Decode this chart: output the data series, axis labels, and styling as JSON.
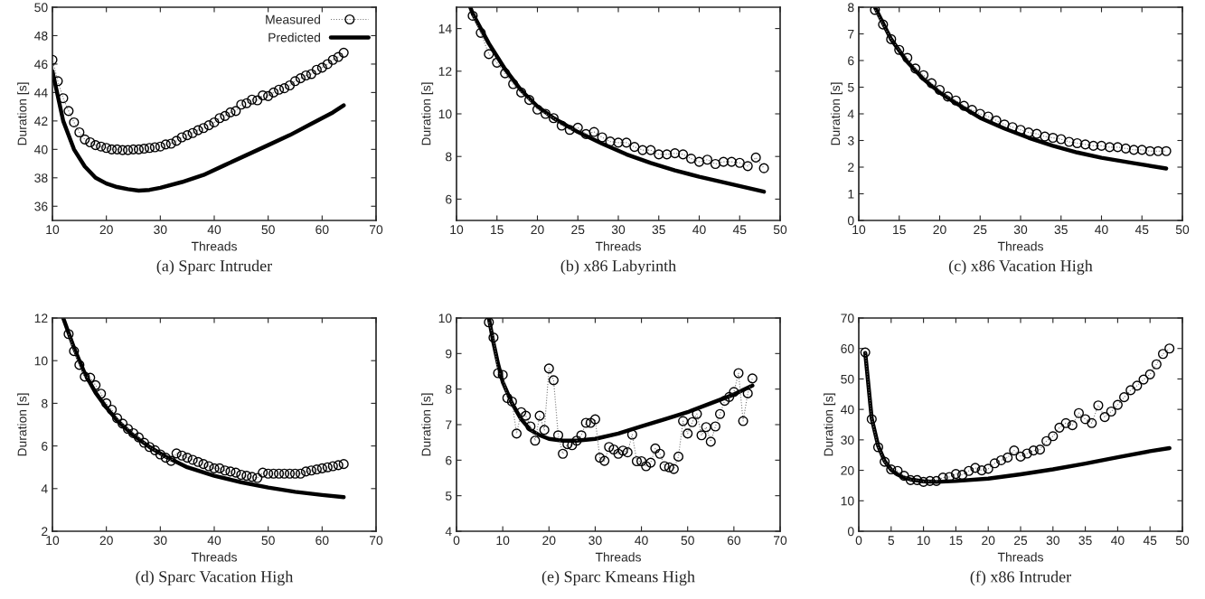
{
  "chart_data": [
    {
      "type": "line",
      "title": "(a) Sparc Intruder",
      "xlabel": "Threads",
      "ylabel": "Duration [s]",
      "xlim": [
        10,
        70
      ],
      "xticks": [
        10,
        20,
        30,
        40,
        50,
        60,
        70
      ],
      "ylim": [
        35,
        50
      ],
      "yticks": [
        36,
        38,
        40,
        42,
        44,
        46,
        48,
        50
      ],
      "grid": false,
      "legend": "top right",
      "series": [
        {
          "name": "Measured",
          "color": "#000000",
          "marker": "circle",
          "line_style": "dotted",
          "x": [
            10,
            11,
            12,
            13,
            14,
            15,
            16,
            17,
            18,
            19,
            20,
            21,
            22,
            23,
            24,
            25,
            26,
            27,
            28,
            29,
            30,
            31,
            32,
            33,
            34,
            35,
            36,
            37,
            38,
            39,
            40,
            41,
            42,
            43,
            44,
            45,
            46,
            47,
            48,
            49,
            50,
            51,
            52,
            53,
            54,
            55,
            56,
            57,
            58,
            59,
            60,
            61,
            62,
            63,
            64
          ],
          "values": [
            46.3,
            44.8,
            43.6,
            42.7,
            41.9,
            41.2,
            40.7,
            40.5,
            40.3,
            40.2,
            40.1,
            40.0,
            40.0,
            39.95,
            39.95,
            40.0,
            40.0,
            40.05,
            40.1,
            40.15,
            40.2,
            40.35,
            40.4,
            40.6,
            40.85,
            41.0,
            41.15,
            41.35,
            41.5,
            41.7,
            41.9,
            42.2,
            42.35,
            42.6,
            42.7,
            43.15,
            43.25,
            43.5,
            43.45,
            43.8,
            43.75,
            44.0,
            44.2,
            44.3,
            44.5,
            44.8,
            45.0,
            45.2,
            45.3,
            45.6,
            45.75,
            46.0,
            46.3,
            46.5,
            46.8
          ]
        },
        {
          "name": "Predicted",
          "color": "#000000",
          "marker": "none",
          "line_style": "solid",
          "x": [
            10,
            12,
            14,
            16,
            18,
            20,
            22,
            24,
            26,
            28,
            30,
            34,
            38,
            42,
            46,
            50,
            54,
            58,
            62,
            64
          ],
          "values": [
            45.5,
            42.0,
            40.0,
            38.8,
            38.0,
            37.6,
            37.35,
            37.2,
            37.1,
            37.15,
            37.3,
            37.7,
            38.2,
            38.9,
            39.6,
            40.3,
            41.0,
            41.8,
            42.6,
            43.1
          ]
        }
      ]
    },
    {
      "type": "line",
      "title": "(b) x86 Labyrinth",
      "xlabel": "Threads",
      "ylabel": "Duration [s]",
      "xlim": [
        10,
        50
      ],
      "xticks": [
        10,
        15,
        20,
        25,
        30,
        35,
        40,
        45,
        50
      ],
      "ylim": [
        5,
        15
      ],
      "yticks": [
        6,
        8,
        10,
        12,
        14
      ],
      "grid": false,
      "series": [
        {
          "color": "#000000",
          "marker": "circle",
          "line_style": "dotted",
          "x": [
            12,
            13,
            14,
            15,
            16,
            17,
            18,
            19,
            20,
            21,
            22,
            23,
            24,
            25,
            26,
            27,
            28,
            29,
            30,
            31,
            32,
            33,
            34,
            35,
            36,
            37,
            38,
            39,
            40,
            41,
            42,
            43,
            44,
            45,
            46,
            47,
            48
          ],
          "values": [
            14.6,
            13.8,
            12.8,
            12.4,
            11.9,
            11.4,
            11.0,
            10.65,
            10.2,
            10.0,
            9.8,
            9.45,
            9.25,
            9.35,
            9.05,
            9.15,
            8.9,
            8.7,
            8.65,
            8.65,
            8.45,
            8.3,
            8.3,
            8.1,
            8.1,
            8.15,
            8.1,
            7.9,
            7.75,
            7.85,
            7.65,
            7.75,
            7.75,
            7.7,
            7.55,
            7.95,
            7.45
          ]
        },
        {
          "color": "#000000",
          "marker": "none",
          "line_style": "solid",
          "x": [
            11.7,
            12,
            14,
            16,
            18,
            20,
            22,
            25,
            28,
            31,
            34,
            37,
            40,
            44,
            48
          ],
          "values": [
            15.0,
            14.7,
            13.3,
            12.1,
            11.1,
            10.35,
            9.8,
            9.15,
            8.6,
            8.1,
            7.7,
            7.35,
            7.05,
            6.7,
            6.35
          ]
        }
      ]
    },
    {
      "type": "line",
      "title": "(c) x86 Vacation High",
      "xlabel": "Threads",
      "ylabel": "Duration [s]",
      "xlim": [
        10,
        50
      ],
      "xticks": [
        10,
        15,
        20,
        25,
        30,
        35,
        40,
        45,
        50
      ],
      "ylim": [
        0,
        8
      ],
      "yticks": [
        0,
        1,
        2,
        3,
        4,
        5,
        6,
        7,
        8
      ],
      "grid": false,
      "series": [
        {
          "color": "#000000",
          "marker": "circle",
          "line_style": "dotted",
          "x": [
            12,
            13,
            14,
            15,
            16,
            17,
            18,
            19,
            20,
            21,
            22,
            23,
            24,
            25,
            26,
            27,
            28,
            29,
            30,
            31,
            32,
            33,
            34,
            35,
            36,
            37,
            38,
            39,
            40,
            41,
            42,
            43,
            44,
            45,
            46,
            47,
            48
          ],
          "values": [
            7.9,
            7.35,
            6.8,
            6.4,
            6.1,
            5.7,
            5.45,
            5.15,
            4.9,
            4.65,
            4.5,
            4.3,
            4.15,
            4.0,
            3.9,
            3.75,
            3.6,
            3.5,
            3.4,
            3.3,
            3.25,
            3.15,
            3.1,
            3.05,
            2.95,
            2.9,
            2.85,
            2.8,
            2.8,
            2.75,
            2.75,
            2.7,
            2.65,
            2.65,
            2.6,
            2.6,
            2.6
          ]
        },
        {
          "color": "#000000",
          "marker": "none",
          "line_style": "solid",
          "x": [
            12,
            14,
            16,
            18,
            20,
            22,
            25,
            28,
            31,
            34,
            37,
            40,
            44,
            48
          ],
          "values": [
            8.0,
            6.8,
            5.95,
            5.3,
            4.8,
            4.4,
            3.85,
            3.45,
            3.1,
            2.8,
            2.55,
            2.35,
            2.15,
            1.95
          ]
        }
      ]
    },
    {
      "type": "line",
      "title": "(d) Sparc Vacation High",
      "xlabel": "Threads",
      "ylabel": "Duration [s]",
      "xlim": [
        10,
        70
      ],
      "xticks": [
        10,
        20,
        30,
        40,
        50,
        60,
        70
      ],
      "ylim": [
        2,
        12
      ],
      "yticks": [
        2,
        4,
        6,
        8,
        10,
        12
      ],
      "grid": false,
      "series": [
        {
          "color": "#000000",
          "marker": "circle",
          "line_style": "dotted",
          "x": [
            13,
            14,
            15,
            16,
            17,
            18,
            19,
            20,
            21,
            22,
            23,
            24,
            25,
            26,
            27,
            28,
            29,
            30,
            31,
            32,
            33,
            34,
            35,
            36,
            37,
            38,
            39,
            40,
            41,
            42,
            43,
            44,
            45,
            46,
            47,
            48,
            49,
            50,
            51,
            52,
            53,
            54,
            55,
            56,
            57,
            58,
            59,
            60,
            61,
            62,
            63,
            64
          ],
          "values": [
            11.25,
            10.45,
            9.8,
            9.25,
            9.2,
            8.85,
            8.45,
            8.0,
            7.7,
            7.3,
            7.05,
            6.8,
            6.6,
            6.4,
            6.15,
            5.95,
            5.8,
            5.6,
            5.45,
            5.3,
            5.65,
            5.55,
            5.45,
            5.35,
            5.25,
            5.15,
            5.05,
            4.95,
            4.95,
            4.85,
            4.8,
            4.75,
            4.65,
            4.6,
            4.55,
            4.5,
            4.75,
            4.7,
            4.7,
            4.7,
            4.7,
            4.7,
            4.7,
            4.7,
            4.8,
            4.85,
            4.9,
            4.95,
            5.0,
            5.05,
            5.1,
            5.15
          ]
        },
        {
          "color": "#000000",
          "marker": "none",
          "line_style": "solid",
          "x": [
            12,
            14,
            16,
            18,
            20,
            22,
            25,
            28,
            31,
            35,
            40,
            45,
            50,
            55,
            60,
            64
          ],
          "values": [
            12.0,
            10.6,
            9.4,
            8.5,
            7.8,
            7.2,
            6.5,
            5.95,
            5.5,
            5.0,
            4.6,
            4.3,
            4.05,
            3.85,
            3.7,
            3.6
          ]
        }
      ]
    },
    {
      "type": "line",
      "title": "(e) Sparc Kmeans High",
      "xlabel": "Threads",
      "ylabel": "Duration [s]",
      "xlim": [
        0,
        70
      ],
      "xticks": [
        0,
        10,
        20,
        30,
        40,
        50,
        60,
        70
      ],
      "ylim": [
        4,
        10
      ],
      "yticks": [
        4,
        5,
        6,
        7,
        8,
        9,
        10
      ],
      "grid": false,
      "series": [
        {
          "color": "#000000",
          "marker": "circle",
          "line_style": "dotted",
          "x": [
            7,
            8,
            9,
            10,
            11,
            12,
            13,
            14,
            15,
            16,
            17,
            18,
            19,
            20,
            21,
            22,
            23,
            24,
            25,
            26,
            27,
            28,
            29,
            30,
            31,
            32,
            33,
            34,
            35,
            36,
            37,
            38,
            39,
            40,
            41,
            42,
            43,
            44,
            45,
            46,
            47,
            48,
            49,
            50,
            51,
            52,
            53,
            54,
            55,
            56,
            57,
            58,
            59,
            60,
            61,
            62,
            63,
            64
          ],
          "values": [
            9.88,
            9.45,
            8.45,
            8.4,
            7.75,
            7.65,
            6.75,
            7.35,
            7.25,
            6.95,
            6.55,
            7.25,
            6.85,
            8.58,
            8.25,
            6.7,
            6.18,
            6.45,
            6.42,
            6.55,
            6.7,
            7.05,
            7.05,
            7.15,
            6.07,
            5.98,
            6.37,
            6.3,
            6.18,
            6.27,
            6.22,
            6.72,
            5.97,
            5.97,
            5.83,
            5.93,
            6.33,
            6.18,
            5.83,
            5.8,
            5.75,
            6.1,
            7.1,
            6.75,
            7.07,
            7.3,
            6.7,
            6.93,
            6.52,
            6.95,
            7.3,
            7.67,
            7.78,
            7.92,
            8.45,
            7.1,
            7.88,
            8.3
          ]
        },
        {
          "color": "#000000",
          "marker": "none",
          "line_style": "solid",
          "x": [
            7,
            8,
            9,
            10,
            12,
            14,
            16,
            18,
            20,
            23,
            26,
            30,
            35,
            40,
            45,
            50,
            55,
            60,
            64
          ],
          "values": [
            10.0,
            9.3,
            8.7,
            8.2,
            7.6,
            7.15,
            6.85,
            6.7,
            6.6,
            6.55,
            6.55,
            6.6,
            6.75,
            6.95,
            7.15,
            7.35,
            7.6,
            7.85,
            8.1
          ]
        }
      ]
    },
    {
      "type": "line",
      "title": "(f) x86 Intruder",
      "xlabel": "Threads",
      "ylabel": "Duration [s]",
      "xlim": [
        0,
        50
      ],
      "xticks": [
        0,
        5,
        10,
        15,
        20,
        25,
        30,
        35,
        40,
        45,
        50
      ],
      "ylim": [
        0,
        70
      ],
      "yticks": [
        0,
        10,
        20,
        30,
        40,
        50,
        60,
        70
      ],
      "grid": false,
      "series": [
        {
          "color": "#000000",
          "marker": "circle",
          "line_style": "dotted",
          "x": [
            1,
            2,
            3,
            4,
            5,
            6,
            7,
            8,
            9,
            10,
            11,
            12,
            13,
            14,
            15,
            16,
            17,
            18,
            19,
            20,
            21,
            22,
            23,
            24,
            25,
            26,
            27,
            28,
            29,
            30,
            31,
            32,
            33,
            34,
            35,
            36,
            37,
            38,
            39,
            40,
            41,
            42,
            43,
            44,
            45,
            46,
            47,
            48
          ],
          "values": [
            58.7,
            36.8,
            27.6,
            22.8,
            20.3,
            19.8,
            18.2,
            16.8,
            16.8,
            16.2,
            16.5,
            16.5,
            17.6,
            17.8,
            18.8,
            18.5,
            19.8,
            20.8,
            20.0,
            20.5,
            22.3,
            23.3,
            24.2,
            26.5,
            24.5,
            25.5,
            26.5,
            26.8,
            29.6,
            31.2,
            34.0,
            35.5,
            34.8,
            38.8,
            36.8,
            35.5,
            41.3,
            37.5,
            39.3,
            41.5,
            44.0,
            46.3,
            47.8,
            49.8,
            51.5,
            54.8,
            58.2,
            60.0
          ]
        },
        {
          "color": "#000000",
          "marker": "none",
          "line_style": "solid",
          "x": [
            1,
            2,
            3,
            4,
            5,
            6,
            7,
            8,
            10,
            12,
            15,
            20,
            25,
            30,
            35,
            40,
            45,
            48
          ],
          "values": [
            58.5,
            37,
            28,
            23,
            20.2,
            18.6,
            17.6,
            17.0,
            16.4,
            16.2,
            16.5,
            17.3,
            18.7,
            20.3,
            22.2,
            24.3,
            26.3,
            27.3
          ]
        }
      ]
    }
  ]
}
